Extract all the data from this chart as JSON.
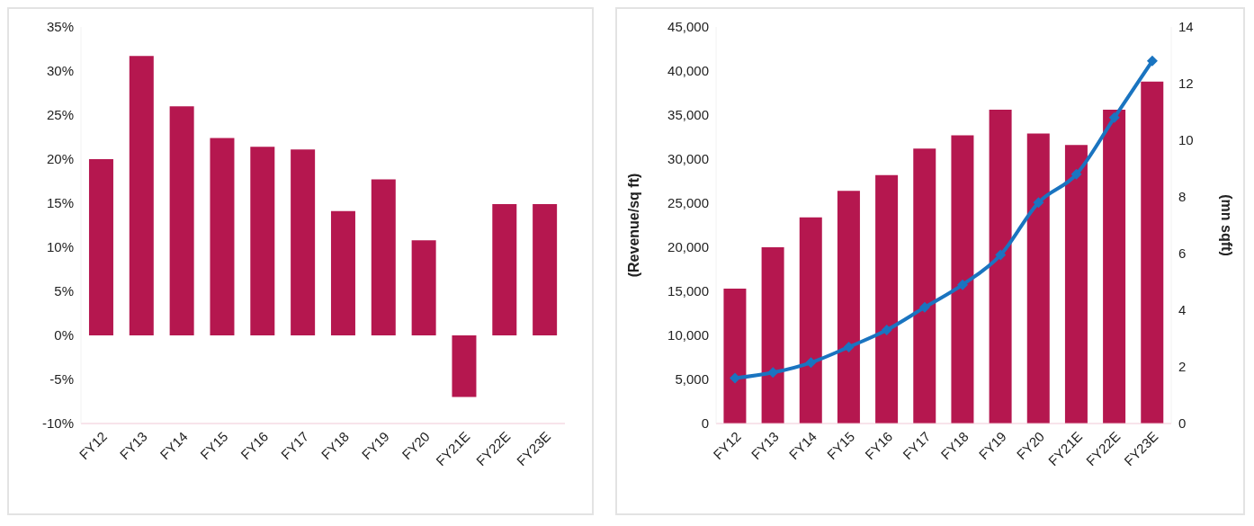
{
  "chart_data": [
    {
      "type": "bar",
      "categories": [
        "FY12",
        "FY13",
        "FY14",
        "FY15",
        "FY16",
        "FY17",
        "FY18",
        "FY19",
        "FY20",
        "FY21E",
        "FY22E",
        "FY23E"
      ],
      "values": [
        0.2,
        0.317,
        0.26,
        0.224,
        0.214,
        0.211,
        0.141,
        0.177,
        0.108,
        -0.07,
        0.149,
        0.149
      ],
      "color": "#b5174f",
      "ylim": [
        -0.1,
        0.35
      ],
      "yticks": [
        {
          "value": -0.1,
          "label": "-10%"
        },
        {
          "value": -0.05,
          "label": "-5%"
        },
        {
          "value": 0,
          "label": "0%"
        },
        {
          "value": 0.05,
          "label": "5%"
        },
        {
          "value": 0.1,
          "label": "10%"
        },
        {
          "value": 0.15,
          "label": "15%"
        },
        {
          "value": 0.2,
          "label": "20%"
        },
        {
          "value": 0.25,
          "label": "25%"
        },
        {
          "value": 0.3,
          "label": "30%"
        },
        {
          "value": 0.35,
          "label": "35%"
        }
      ]
    },
    {
      "type": "bar",
      "categories": [
        "FY12",
        "FY13",
        "FY14",
        "FY15",
        "FY16",
        "FY17",
        "FY18",
        "FY19",
        "FY20",
        "FY21E",
        "FY22E",
        "FY23E"
      ],
      "ylabel": "(Revenue/sq ft)",
      "y2label": "(mn sqft)",
      "series": [
        {
          "color": "#b5174f",
          "values": [
            15300,
            20000,
            23400,
            26400,
            28200,
            31200,
            32700,
            35600,
            32900,
            31600,
            35600,
            38800
          ]
        },
        {
          "type": "line",
          "axis": "y2",
          "color": "#1a74c0",
          "marker": "diamond",
          "values": [
            1.6,
            1.8,
            2.15,
            2.7,
            3.3,
            4.1,
            4.9,
            5.95,
            7.8,
            8.8,
            10.8,
            12.8
          ]
        }
      ],
      "ylim": [
        0,
        45000
      ],
      "yticks": [
        {
          "value": 0,
          "label": "0"
        },
        {
          "value": 5000,
          "label": "5,000"
        },
        {
          "value": 10000,
          "label": "10,000"
        },
        {
          "value": 15000,
          "label": "15,000"
        },
        {
          "value": 20000,
          "label": "20,000"
        },
        {
          "value": 25000,
          "label": "25,000"
        },
        {
          "value": 30000,
          "label": "30,000"
        },
        {
          "value": 35000,
          "label": "35,000"
        },
        {
          "value": 40000,
          "label": "40,000"
        },
        {
          "value": 45000,
          "label": "45,000"
        }
      ],
      "y2lim": [
        0,
        14
      ],
      "y2ticks": [
        0,
        2,
        4,
        6,
        8,
        10,
        12,
        14
      ]
    }
  ]
}
